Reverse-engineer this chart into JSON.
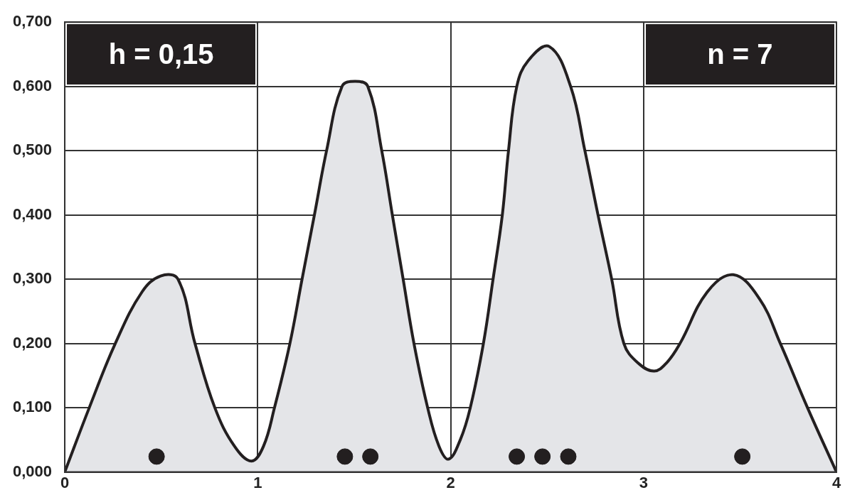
{
  "chart_data": {
    "type": "area",
    "annotations": [
      "h = 0,15",
      "n = 7"
    ],
    "xlim": [
      0,
      4
    ],
    "xticks": [
      0,
      1,
      2,
      3,
      4
    ],
    "ylim": [
      0,
      0.7
    ],
    "yticks": [
      {
        "value": 0,
        "label": "0,000"
      },
      {
        "value": 0.1,
        "label": "0,100"
      },
      {
        "value": 0.2,
        "label": "0,200"
      },
      {
        "value": 0.3,
        "label": "0,300"
      },
      {
        "value": 0.4,
        "label": "0,400"
      },
      {
        "value": 0.5,
        "label": "0,500"
      },
      {
        "value": 0.6,
        "label": "0,600"
      },
      {
        "value": 0.7,
        "label": "0,700"
      }
    ],
    "grid": true,
    "series": [
      {
        "color": "#e4e5e8",
        "x": [
          0,
          0.127,
          0.262,
          0.4,
          0.497,
          0.587,
          0.675,
          0.778,
          0.88,
          0.968,
          1.03,
          1.087,
          1.167,
          1.23,
          1.294,
          1.357,
          1.437,
          1.505,
          1.571,
          1.643,
          1.698,
          1.754,
          1.81,
          1.881,
          1.94,
          1.99,
          2.05,
          2.102,
          2.17,
          2.22,
          2.268,
          2.3,
          2.343,
          2.402,
          2.512,
          2.622,
          2.696,
          2.764,
          2.835,
          2.898,
          2.97,
          3.055,
          3.12,
          3.189,
          3.33,
          3.465,
          3.6,
          3.709,
          3.85,
          4.0
        ],
        "values": [
          0,
          0.1,
          0.2,
          0.28,
          0.305,
          0.3,
          0.2,
          0.1,
          0.04,
          0.017,
          0.04,
          0.1,
          0.2,
          0.3,
          0.4,
          0.5,
          0.6,
          0.608,
          0.6,
          0.5,
          0.4,
          0.3,
          0.2,
          0.1,
          0.04,
          0.02,
          0.05,
          0.1,
          0.2,
          0.3,
          0.4,
          0.5,
          0.6,
          0.64,
          0.662,
          0.6,
          0.5,
          0.4,
          0.3,
          0.2,
          0.17,
          0.157,
          0.17,
          0.2,
          0.28,
          0.307,
          0.27,
          0.2,
          0.1,
          0
        ]
      },
      {
        "type": "scatter",
        "color": "#231f20",
        "marker": "circle",
        "x": [
          0.476,
          1.452,
          1.584,
          2.343,
          2.476,
          2.61,
          3.512
        ],
        "values": [
          0.024,
          0.024,
          0.024,
          0.024,
          0.024,
          0.024,
          0.024
        ]
      }
    ]
  }
}
